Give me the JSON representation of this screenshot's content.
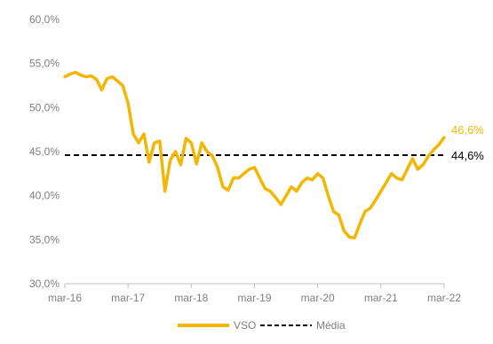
{
  "chart_data": {
    "type": "line",
    "xlabel": "",
    "ylabel": "",
    "x_ticks": [
      "mar-16",
      "mar-17",
      "mar-18",
      "mar-19",
      "mar-20",
      "mar-21",
      "mar-22"
    ],
    "y_ticks": [
      "30,0%",
      "35,0%",
      "40,0%",
      "45,0%",
      "50,0%",
      "55,0%",
      "60,0%"
    ],
    "ylim": [
      30,
      60
    ],
    "grid": false,
    "legend_position": "bottom",
    "series": [
      {
        "name": "VSO",
        "color": "#F2B705",
        "end_label": "46,6%",
        "x": [
          "2016-03",
          "2016-04",
          "2016-05",
          "2016-06",
          "2016-07",
          "2016-08",
          "2016-09",
          "2016-10",
          "2016-11",
          "2016-12",
          "2017-01",
          "2017-02",
          "2017-03",
          "2017-04",
          "2017-05",
          "2017-06",
          "2017-07",
          "2017-08",
          "2017-09",
          "2017-10",
          "2017-11",
          "2017-12",
          "2018-01",
          "2018-02",
          "2018-03",
          "2018-04",
          "2018-05",
          "2018-06",
          "2018-07",
          "2018-08",
          "2018-09",
          "2018-10",
          "2018-11",
          "2018-12",
          "2019-01",
          "2019-02",
          "2019-03",
          "2019-04",
          "2019-05",
          "2019-06",
          "2019-07",
          "2019-08",
          "2019-09",
          "2019-10",
          "2019-11",
          "2019-12",
          "2020-01",
          "2020-02",
          "2020-03",
          "2020-04",
          "2020-05",
          "2020-06",
          "2020-07",
          "2020-08",
          "2020-09",
          "2020-10",
          "2020-11",
          "2020-12",
          "2021-01",
          "2021-02",
          "2021-03",
          "2021-04",
          "2021-05",
          "2021-06",
          "2021-07",
          "2021-08",
          "2021-09",
          "2021-10",
          "2021-11",
          "2021-12",
          "2022-01",
          "2022-02",
          "2022-03"
        ],
        "values": [
          53.5,
          53.8,
          54.0,
          53.7,
          53.5,
          53.6,
          53.2,
          52.0,
          53.3,
          53.5,
          53.0,
          52.5,
          50.5,
          47.0,
          46.0,
          47.0,
          43.8,
          46.0,
          46.2,
          40.5,
          44.0,
          45.0,
          43.5,
          46.5,
          46.0,
          43.6,
          46.0,
          45.0,
          44.5,
          43.2,
          41.0,
          40.6,
          42.0,
          42.0,
          42.5,
          43.0,
          43.2,
          42.0,
          40.8,
          40.5,
          39.8,
          39.0,
          40.0,
          41.0,
          40.5,
          41.5,
          42.0,
          41.8,
          42.5,
          42.0,
          40.0,
          38.2,
          37.8,
          36.0,
          35.3,
          35.2,
          36.8,
          38.2,
          38.6,
          39.5,
          40.5,
          41.5,
          42.5,
          42.0,
          41.8,
          43.0,
          44.2,
          43.0,
          43.5,
          44.5,
          45.2,
          45.8,
          46.6
        ]
      },
      {
        "name": "Média",
        "color": "#000000",
        "end_label": "44,6%",
        "values": [
          44.6
        ]
      }
    ]
  }
}
